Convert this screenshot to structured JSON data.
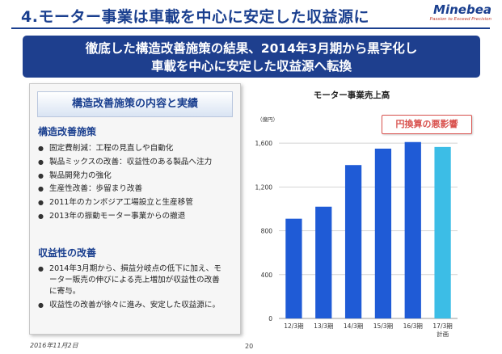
{
  "slide": {
    "title": "4.モーター事業は車載を中心に安定した収益源に",
    "logo_name": "Minebea",
    "logo_slogan": "Passion to Exceed Precision",
    "banner_line1": "徹底した構造改善施策の結果、2014年3月期から黒字化し",
    "banner_line2": "車載を中心に安定した収益源へ転換",
    "date": "2016年11月2日",
    "page": "20"
  },
  "panel": {
    "heading": "構造改善施策の内容と実績",
    "section1_title": "構造改善施策",
    "section1_items": [
      "固定費削減：工程の見直しや自動化",
      "製品ミックスの改善：収益性のある製品へ注力",
      "製品開発力の強化",
      "生産性改善：歩留まり改善",
      "2011年のカンボジア工場設立と生産移管",
      "2013年の振動モーター事業からの撤退"
    ],
    "section2_title": "収益性の改善",
    "section2_items": [
      "2014年3月期から、損益分岐点の低下に加え、モーター販売の伸びによる売上増加が収益性の改善に寄与。",
      "収益性の改善が徐々に進み、安定した収益源に。"
    ]
  },
  "chart_data": {
    "type": "bar",
    "title": "モーター事業売上高",
    "unit_label": "（億円）",
    "categories": [
      "12/3期",
      "13/3期",
      "14/3期",
      "15/3期",
      "16/3期",
      "17/3期"
    ],
    "category_sublabels": [
      "",
      "",
      "",
      "",
      "",
      "計画"
    ],
    "values": [
      910,
      1020,
      1400,
      1550,
      1610,
      1565
    ],
    "bar_colors": [
      "#1f5bd6",
      "#1f5bd6",
      "#1f5bd6",
      "#1f5bd6",
      "#1f5bd6",
      "#3cbde6"
    ],
    "yticks": [
      0,
      400,
      800,
      1200,
      1600
    ],
    "ytick_labels": [
      "0",
      "400",
      "800",
      "1,200",
      "1,600"
    ],
    "ylim": [
      0,
      1800
    ],
    "grid": true,
    "annotation": "円換算の悪影響"
  }
}
